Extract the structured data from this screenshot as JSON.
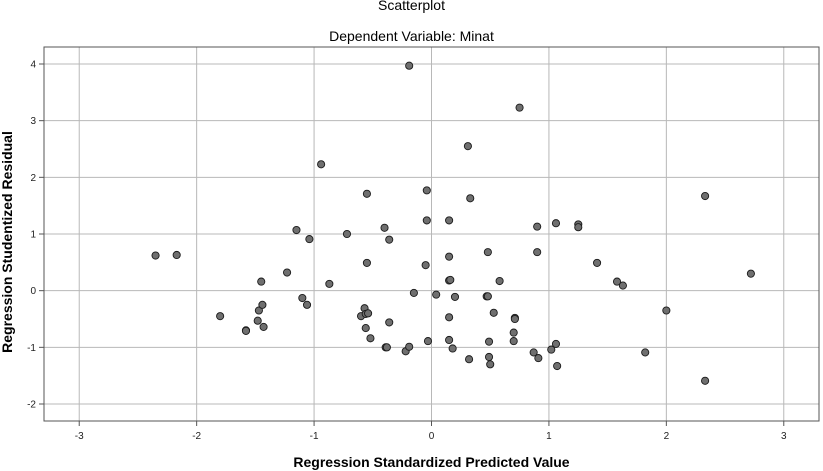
{
  "chart_data": {
    "type": "scatter",
    "title": "Scatterplot",
    "subtitle": "Dependent Variable: Minat",
    "xlabel": "Regression Standardized Predicted Value",
    "ylabel": "Regression Studentized Residual",
    "xlim": [
      -3.3,
      3.3
    ],
    "ylim": [
      -2.3,
      4.3
    ],
    "x_ticks": [
      -3,
      -2,
      -1,
      0,
      1,
      2,
      3
    ],
    "y_ticks": [
      -2,
      -1,
      0,
      1,
      2,
      3,
      4
    ],
    "grid": true,
    "marker_color": "#6f6f6f",
    "points": [
      {
        "x": -2.35,
        "y": 0.62
      },
      {
        "x": -2.17,
        "y": 0.63
      },
      {
        "x": -1.8,
        "y": -0.45
      },
      {
        "x": -1.58,
        "y": -0.7
      },
      {
        "x": -1.58,
        "y": -0.71
      },
      {
        "x": -1.48,
        "y": -0.53
      },
      {
        "x": -1.47,
        "y": -0.35
      },
      {
        "x": -1.45,
        "y": 0.16
      },
      {
        "x": -1.44,
        "y": -0.25
      },
      {
        "x": -1.43,
        "y": -0.64
      },
      {
        "x": -1.23,
        "y": 0.32
      },
      {
        "x": -1.15,
        "y": 1.07
      },
      {
        "x": -1.1,
        "y": -0.13
      },
      {
        "x": -1.06,
        "y": -0.25
      },
      {
        "x": -1.04,
        "y": 0.91
      },
      {
        "x": -0.94,
        "y": 2.23
      },
      {
        "x": -0.87,
        "y": 0.12
      },
      {
        "x": -0.72,
        "y": 1.0
      },
      {
        "x": -0.6,
        "y": -0.45
      },
      {
        "x": -0.57,
        "y": -0.31
      },
      {
        "x": -0.56,
        "y": -0.41
      },
      {
        "x": -0.56,
        "y": -0.66
      },
      {
        "x": -0.55,
        "y": 0.49
      },
      {
        "x": -0.55,
        "y": 1.71
      },
      {
        "x": -0.54,
        "y": -0.4
      },
      {
        "x": -0.52,
        "y": -0.84
      },
      {
        "x": -0.4,
        "y": 1.11
      },
      {
        "x": -0.39,
        "y": -1.0
      },
      {
        "x": -0.38,
        "y": -1.0
      },
      {
        "x": -0.36,
        "y": 0.9
      },
      {
        "x": -0.36,
        "y": -0.56
      },
      {
        "x": -0.22,
        "y": -1.07
      },
      {
        "x": -0.19,
        "y": 3.97
      },
      {
        "x": -0.19,
        "y": -0.99
      },
      {
        "x": -0.15,
        "y": -0.04
      },
      {
        "x": -0.05,
        "y": 0.45
      },
      {
        "x": -0.04,
        "y": 1.77
      },
      {
        "x": -0.04,
        "y": 1.24
      },
      {
        "x": -0.03,
        "y": -0.89
      },
      {
        "x": 0.04,
        "y": -0.07
      },
      {
        "x": 0.15,
        "y": 1.24
      },
      {
        "x": 0.15,
        "y": 0.6
      },
      {
        "x": 0.15,
        "y": 0.18
      },
      {
        "x": 0.15,
        "y": -0.87
      },
      {
        "x": 0.15,
        "y": -0.47
      },
      {
        "x": 0.16,
        "y": 0.19
      },
      {
        "x": 0.18,
        "y": -1.02
      },
      {
        "x": 0.2,
        "y": -0.11
      },
      {
        "x": 0.31,
        "y": 2.55
      },
      {
        "x": 0.32,
        "y": -1.21
      },
      {
        "x": 0.33,
        "y": 1.63
      },
      {
        "x": 0.47,
        "y": -0.1
      },
      {
        "x": 0.48,
        "y": 0.68
      },
      {
        "x": 0.48,
        "y": -0.1
      },
      {
        "x": 0.49,
        "y": -0.9
      },
      {
        "x": 0.49,
        "y": -1.17
      },
      {
        "x": 0.5,
        "y": -1.3
      },
      {
        "x": 0.53,
        "y": -0.39
      },
      {
        "x": 0.58,
        "y": 0.17
      },
      {
        "x": 0.7,
        "y": -0.89
      },
      {
        "x": 0.7,
        "y": -0.74
      },
      {
        "x": 0.71,
        "y": -0.48
      },
      {
        "x": 0.71,
        "y": -0.5
      },
      {
        "x": 0.75,
        "y": 3.23
      },
      {
        "x": 0.87,
        "y": -1.09
      },
      {
        "x": 0.9,
        "y": 1.13
      },
      {
        "x": 0.9,
        "y": 0.68
      },
      {
        "x": 0.91,
        "y": -1.19
      },
      {
        "x": 1.02,
        "y": -1.04
      },
      {
        "x": 1.06,
        "y": 1.19
      },
      {
        "x": 1.06,
        "y": -0.94
      },
      {
        "x": 1.07,
        "y": -1.33
      },
      {
        "x": 1.25,
        "y": 1.17
      },
      {
        "x": 1.25,
        "y": 1.12
      },
      {
        "x": 1.41,
        "y": 0.49
      },
      {
        "x": 1.58,
        "y": 0.16
      },
      {
        "x": 1.63,
        "y": 0.09
      },
      {
        "x": 1.82,
        "y": -1.09
      },
      {
        "x": 2.0,
        "y": -0.35
      },
      {
        "x": 2.33,
        "y": 1.67
      },
      {
        "x": 2.33,
        "y": -1.59
      },
      {
        "x": 2.72,
        "y": 0.3
      }
    ]
  }
}
